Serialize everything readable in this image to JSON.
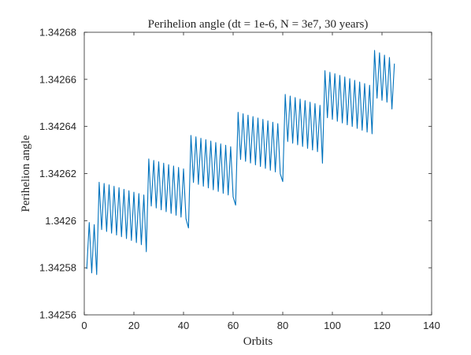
{
  "chart_data": {
    "type": "line",
    "title": "Perihelion angle (dt = 1e-6, N = 3e7, 30 years)",
    "xlabel": "Orbits",
    "ylabel": "Perihelion angle",
    "xlim": [
      0,
      140
    ],
    "ylim": [
      1.34256,
      1.34268
    ],
    "grid": false,
    "legend": "none",
    "x_ticks": [
      0,
      20,
      40,
      60,
      80,
      100,
      120,
      140
    ],
    "x_tick_labels": [
      "0",
      "20",
      "40",
      "60",
      "80",
      "100",
      "120",
      "140"
    ],
    "y_ticks": [
      1.34256,
      1.34258,
      1.3426,
      1.34262,
      1.34264,
      1.34266,
      1.34268
    ],
    "y_tick_labels": [
      "1.34256",
      "1.34258",
      "1.3426",
      "1.34262",
      "1.34264",
      "1.34266",
      "1.34268"
    ],
    "line_color": "#0072BD",
    "series": [
      {
        "x": [
          1,
          2,
          3,
          4,
          5,
          6,
          7,
          8,
          9,
          10,
          11,
          12,
          13,
          14,
          15,
          16,
          17,
          18,
          19,
          20,
          21,
          22,
          23,
          24,
          25,
          26,
          27,
          28,
          29,
          30,
          31,
          32,
          33,
          34,
          35,
          36,
          37,
          38,
          39,
          40,
          41,
          42,
          43,
          44,
          45,
          46,
          47,
          48,
          49,
          50,
          51,
          52,
          53,
          54,
          55,
          56,
          57,
          58,
          59,
          60,
          61,
          62,
          63,
          64,
          65,
          66,
          67,
          68,
          69,
          70,
          71,
          72,
          73,
          74,
          75,
          76,
          77,
          78,
          79,
          80,
          81,
          82,
          83,
          84,
          85,
          86,
          87,
          88,
          89,
          90,
          91,
          92,
          93,
          94,
          95,
          96,
          97,
          98,
          99,
          100,
          101,
          102,
          103,
          104,
          105,
          106,
          107,
          108,
          109,
          110,
          111,
          112,
          113,
          114,
          115,
          116,
          117,
          118,
          119,
          120,
          121,
          122,
          123,
          124,
          125
        ],
        "y": [
          1.3425795,
          1.3425992,
          1.3425778,
          1.3425983,
          1.3425771,
          1.3426163,
          1.3425962,
          1.3426158,
          1.3425954,
          1.3426152,
          1.3425947,
          1.3426146,
          1.3425939,
          1.342614,
          1.3425932,
          1.3426133,
          1.3425924,
          1.3426127,
          1.3425916,
          1.3426121,
          1.3425907,
          1.3426115,
          1.3425898,
          1.3426109,
          1.3425868,
          1.3426262,
          1.3426062,
          1.3426256,
          1.3426054,
          1.342625,
          1.3426046,
          1.3426244,
          1.3426038,
          1.3426238,
          1.3426031,
          1.3426232,
          1.3426023,
          1.3426226,
          1.3426015,
          1.342622,
          1.3426008,
          1.3425969,
          1.3426362,
          1.3426162,
          1.3426356,
          1.3426154,
          1.342635,
          1.3426146,
          1.3426344,
          1.3426139,
          1.3426338,
          1.3426131,
          1.3426332,
          1.3426124,
          1.3426326,
          1.3426116,
          1.342632,
          1.3426109,
          1.3426314,
          1.3426101,
          1.3426066,
          1.342646,
          1.342626,
          1.3426454,
          1.3426252,
          1.3426448,
          1.3426245,
          1.3426442,
          1.3426237,
          1.3426436,
          1.342623,
          1.342643,
          1.3426222,
          1.3426424,
          1.3426214,
          1.3426418,
          1.3426207,
          1.3426412,
          1.3426199,
          1.3426166,
          1.3426536,
          1.3426336,
          1.3426529,
          1.3426329,
          1.3426523,
          1.3426322,
          1.3426516,
          1.3426315,
          1.342651,
          1.3426307,
          1.3426503,
          1.34263,
          1.3426497,
          1.3426293,
          1.342649,
          1.3426244,
          1.3426637,
          1.3426437,
          1.342663,
          1.342643,
          1.3426624,
          1.3426422,
          1.3426617,
          1.3426415,
          1.342661,
          1.3426407,
          1.3426603,
          1.34264,
          1.3426596,
          1.3426392,
          1.3426589,
          1.3426384,
          1.3426582,
          1.3426376,
          1.3426575,
          1.3426369,
          1.3426723,
          1.342652,
          1.3426713,
          1.3426511,
          1.3426703,
          1.3426503,
          1.3426693,
          1.3426474,
          1.3426667
        ]
      }
    ]
  }
}
